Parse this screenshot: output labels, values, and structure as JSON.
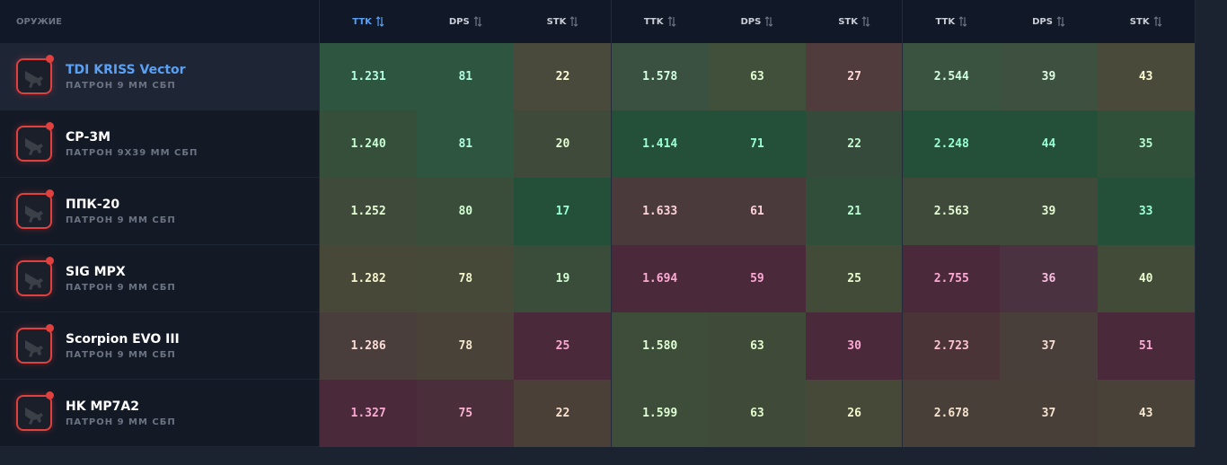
{
  "header": {
    "weapon": "ОРУЖИЕ",
    "columns": [
      "TTK",
      "DPS",
      "STK",
      "TTK",
      "DPS",
      "STK",
      "TTK",
      "DPS",
      "STK"
    ]
  },
  "sorted_column": 0,
  "selected_row": 0,
  "rows": [
    {
      "name": "TDI KRISS Vector",
      "ammo": "ПАТРОН 9 ММ СБП",
      "values": [
        "1.231",
        "81",
        "22",
        "1.578",
        "63",
        "27",
        "2.544",
        "39",
        "43"
      ],
      "colors": [
        "#2e5540",
        "#2e5540",
        "#4a4a3c",
        "#3a5040",
        "#40503a",
        "#503c3c",
        "#3a5240",
        "#3e5040",
        "#4a4a3a"
      ]
    },
    {
      "name": "СР-3М",
      "ammo": "ПАТРОН 9X39 ММ СБП",
      "values": [
        "1.240",
        "81",
        "20",
        "1.414",
        "71",
        "22",
        "2.248",
        "44",
        "35"
      ],
      "colors": [
        "#354f3a",
        "#2e5540",
        "#404a3a",
        "#24503a",
        "#24503a",
        "#354a3a",
        "#24503a",
        "#24503a",
        "#30503a"
      ]
    },
    {
      "name": "ППК-20",
      "ammo": "ПАТРОН 9 ММ СБП",
      "values": [
        "1.252",
        "80",
        "17",
        "1.633",
        "61",
        "21",
        "2.563",
        "39",
        "33"
      ],
      "colors": [
        "#404a3a",
        "#3a4c3a",
        "#24503a",
        "#4a3a3c",
        "#4a3a3c",
        "#304e3a",
        "#404a3a",
        "#404a3a",
        "#24503a"
      ]
    },
    {
      "name": "SIG MPX",
      "ammo": "ПАТРОН 9 ММ СБП",
      "values": [
        "1.282",
        "78",
        "19",
        "1.694",
        "59",
        "25",
        "2.755",
        "36",
        "40"
      ],
      "colors": [
        "#484838",
        "#464838",
        "#3a4c3a",
        "#4a2a3a",
        "#4a2a3a",
        "#424a38",
        "#4a2a3a",
        "#4a3240",
        "#424a38"
      ]
    },
    {
      "name": "Scorpion EVO III",
      "ammo": "ПАТРОН 9 ММ СБП",
      "values": [
        "1.286",
        "78",
        "25",
        "1.580",
        "63",
        "30",
        "2.723",
        "37",
        "51"
      ],
      "colors": [
        "#4a3e3c",
        "#484238",
        "#4a2a3a",
        "#3e4c3a",
        "#404a38",
        "#4a2a3a",
        "#4a3438",
        "#483e3a",
        "#4a2a3a"
      ]
    },
    {
      "name": "HK MP7A2",
      "ammo": "ПАТРОН 9 ММ СБП",
      "values": [
        "1.327",
        "75",
        "22",
        "1.599",
        "63",
        "26",
        "2.678",
        "37",
        "43"
      ],
      "colors": [
        "#4a2a3a",
        "#4a2e3a",
        "#4a4038",
        "#3e4c3a",
        "#404a38",
        "#464838",
        "#484038",
        "#484038",
        "#484238"
      ]
    }
  ]
}
